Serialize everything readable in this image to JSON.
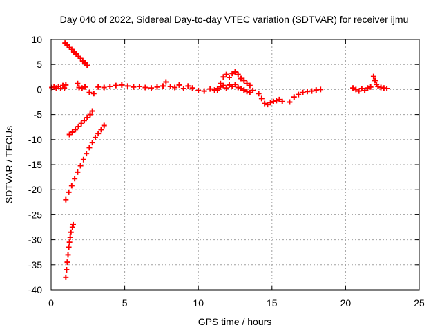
{
  "chart_data": {
    "type": "scatter",
    "title": "Day 040 of 2022, Sidereal Day-to-day VTEC variation (SDTVAR) for receiver ijmu",
    "xlabel": "GPS time / hours",
    "ylabel": "SDTVAR / TECUs",
    "xlim": [
      0,
      25
    ],
    "ylim": [
      -40,
      10
    ],
    "xticks": [
      0,
      5,
      10,
      15,
      20,
      25
    ],
    "yticks": [
      -40,
      -35,
      -30,
      -25,
      -20,
      -15,
      -10,
      -5,
      0,
      5,
      10
    ],
    "grid": true,
    "marker": "+",
    "colors": {
      "series": "#ff0000",
      "axis": "#000000",
      "grid": "#a0a0a0"
    },
    "series": [
      {
        "values": [
          {
            "x": 0.05,
            "y": 0.4
          },
          {
            "x": 0.2,
            "y": 0.5
          },
          {
            "x": 0.35,
            "y": 0.3
          },
          {
            "x": 0.5,
            "y": 0.6
          },
          {
            "x": 0.65,
            "y": 0.2
          },
          {
            "x": 0.8,
            "y": 0.8
          },
          {
            "x": 0.9,
            "y": 0.3
          },
          {
            "x": 1.0,
            "y": 0.9
          },
          {
            "x": 0.95,
            "y": 9.3
          },
          {
            "x": 1.1,
            "y": 8.9
          },
          {
            "x": 1.25,
            "y": 8.4
          },
          {
            "x": 1.4,
            "y": 8.0
          },
          {
            "x": 1.55,
            "y": 7.5
          },
          {
            "x": 1.7,
            "y": 7.1
          },
          {
            "x": 1.85,
            "y": 6.6
          },
          {
            "x": 2.0,
            "y": 6.2
          },
          {
            "x": 2.15,
            "y": 5.7
          },
          {
            "x": 2.3,
            "y": 5.3
          },
          {
            "x": 2.45,
            "y": 4.8
          },
          {
            "x": 1.8,
            "y": 1.2
          },
          {
            "x": 1.9,
            "y": 0.4
          },
          {
            "x": 2.1,
            "y": 0.3
          },
          {
            "x": 2.3,
            "y": 0.5
          },
          {
            "x": 2.6,
            "y": -0.6
          },
          {
            "x": 2.9,
            "y": -0.8
          },
          {
            "x": 3.2,
            "y": 0.5
          },
          {
            "x": 3.6,
            "y": 0.4
          },
          {
            "x": 4.0,
            "y": 0.6
          },
          {
            "x": 4.4,
            "y": 0.8
          },
          {
            "x": 4.8,
            "y": 0.9
          },
          {
            "x": 5.2,
            "y": 0.7
          },
          {
            "x": 5.6,
            "y": 0.5
          },
          {
            "x": 6.0,
            "y": 0.6
          },
          {
            "x": 6.4,
            "y": 0.4
          },
          {
            "x": 6.8,
            "y": 0.3
          },
          {
            "x": 7.2,
            "y": 0.5
          },
          {
            "x": 7.6,
            "y": 0.7
          },
          {
            "x": 7.8,
            "y": 1.5
          },
          {
            "x": 8.1,
            "y": 0.6
          },
          {
            "x": 8.4,
            "y": 0.4
          },
          {
            "x": 8.7,
            "y": 0.9
          },
          {
            "x": 9.0,
            "y": 0.2
          },
          {
            "x": 9.3,
            "y": 0.7
          },
          {
            "x": 9.6,
            "y": 0.3
          },
          {
            "x": 10.0,
            "y": -0.2
          },
          {
            "x": 10.4,
            "y": -0.3
          },
          {
            "x": 10.8,
            "y": 0.1
          },
          {
            "x": 11.1,
            "y": -0.1
          },
          {
            "x": 1.25,
            "y": -9.0
          },
          {
            "x": 1.45,
            "y": -8.5
          },
          {
            "x": 1.65,
            "y": -8.0
          },
          {
            "x": 1.85,
            "y": -7.4
          },
          {
            "x": 2.05,
            "y": -6.8
          },
          {
            "x": 2.25,
            "y": -6.2
          },
          {
            "x": 2.45,
            "y": -5.6
          },
          {
            "x": 2.65,
            "y": -5.0
          },
          {
            "x": 2.8,
            "y": -4.3
          },
          {
            "x": 1.0,
            "y": -22.0
          },
          {
            "x": 1.2,
            "y": -20.5
          },
          {
            "x": 1.4,
            "y": -19.2
          },
          {
            "x": 1.6,
            "y": -17.8
          },
          {
            "x": 1.8,
            "y": -16.5
          },
          {
            "x": 2.0,
            "y": -15.2
          },
          {
            "x": 2.2,
            "y": -14.0
          },
          {
            "x": 2.4,
            "y": -12.8
          },
          {
            "x": 2.6,
            "y": -11.6
          },
          {
            "x": 2.8,
            "y": -10.6
          },
          {
            "x": 3.0,
            "y": -9.6
          },
          {
            "x": 3.2,
            "y": -8.8
          },
          {
            "x": 3.4,
            "y": -8.0
          },
          {
            "x": 3.6,
            "y": -7.2
          },
          {
            "x": 1.0,
            "y": -37.5
          },
          {
            "x": 1.05,
            "y": -36.0
          },
          {
            "x": 1.1,
            "y": -34.5
          },
          {
            "x": 1.15,
            "y": -33.0
          },
          {
            "x": 1.2,
            "y": -31.5
          },
          {
            "x": 1.25,
            "y": -30.5
          },
          {
            "x": 1.3,
            "y": -29.5
          },
          {
            "x": 1.35,
            "y": -28.5
          },
          {
            "x": 1.45,
            "y": -27.5
          },
          {
            "x": 1.5,
            "y": -27.0
          },
          {
            "x": 11.3,
            "y": 0.2
          },
          {
            "x": 11.5,
            "y": 1.2
          },
          {
            "x": 11.7,
            "y": 2.5
          },
          {
            "x": 11.9,
            "y": 3.0
          },
          {
            "x": 12.1,
            "y": 2.4
          },
          {
            "x": 12.3,
            "y": 3.2
          },
          {
            "x": 12.5,
            "y": 3.5
          },
          {
            "x": 12.7,
            "y": 3.0
          },
          {
            "x": 12.9,
            "y": 2.2
          },
          {
            "x": 13.1,
            "y": 1.8
          },
          {
            "x": 13.3,
            "y": 1.2
          },
          {
            "x": 13.5,
            "y": 0.8
          },
          {
            "x": 11.3,
            "y": -0.1
          },
          {
            "x": 11.5,
            "y": 0.5
          },
          {
            "x": 11.7,
            "y": 0.8
          },
          {
            "x": 11.9,
            "y": 0.3
          },
          {
            "x": 12.1,
            "y": 0.9
          },
          {
            "x": 12.3,
            "y": 0.6
          },
          {
            "x": 12.5,
            "y": 1.0
          },
          {
            "x": 12.7,
            "y": 0.4
          },
          {
            "x": 12.9,
            "y": 0.2
          },
          {
            "x": 13.1,
            "y": -0.1
          },
          {
            "x": 13.3,
            "y": -0.4
          },
          {
            "x": 13.5,
            "y": -0.6
          },
          {
            "x": 13.7,
            "y": -0.2
          },
          {
            "x": 14.1,
            "y": -0.8
          },
          {
            "x": 14.3,
            "y": -1.8
          },
          {
            "x": 14.5,
            "y": -2.8
          },
          {
            "x": 14.7,
            "y": -3.0
          },
          {
            "x": 14.9,
            "y": -2.6
          },
          {
            "x": 15.1,
            "y": -2.4
          },
          {
            "x": 15.3,
            "y": -2.2
          },
          {
            "x": 15.5,
            "y": -2.0
          },
          {
            "x": 15.7,
            "y": -2.4
          },
          {
            "x": 16.2,
            "y": -2.5
          },
          {
            "x": 16.5,
            "y": -1.5
          },
          {
            "x": 16.8,
            "y": -1.0
          },
          {
            "x": 17.1,
            "y": -0.6
          },
          {
            "x": 17.4,
            "y": -0.4
          },
          {
            "x": 17.7,
            "y": -0.3
          },
          {
            "x": 18.0,
            "y": -0.1
          },
          {
            "x": 18.3,
            "y": 0.0
          },
          {
            "x": 20.5,
            "y": 0.3
          },
          {
            "x": 20.7,
            "y": 0.0
          },
          {
            "x": 20.9,
            "y": -0.3
          },
          {
            "x": 21.1,
            "y": 0.2
          },
          {
            "x": 21.3,
            "y": -0.2
          },
          {
            "x": 21.5,
            "y": 0.3
          },
          {
            "x": 21.7,
            "y": 0.5
          },
          {
            "x": 21.9,
            "y": 2.6
          },
          {
            "x": 22.0,
            "y": 1.8
          },
          {
            "x": 22.1,
            "y": 1.0
          },
          {
            "x": 22.2,
            "y": 0.6
          },
          {
            "x": 22.4,
            "y": 0.4
          },
          {
            "x": 22.6,
            "y": 0.3
          },
          {
            "x": 22.8,
            "y": 0.2
          }
        ]
      }
    ]
  }
}
